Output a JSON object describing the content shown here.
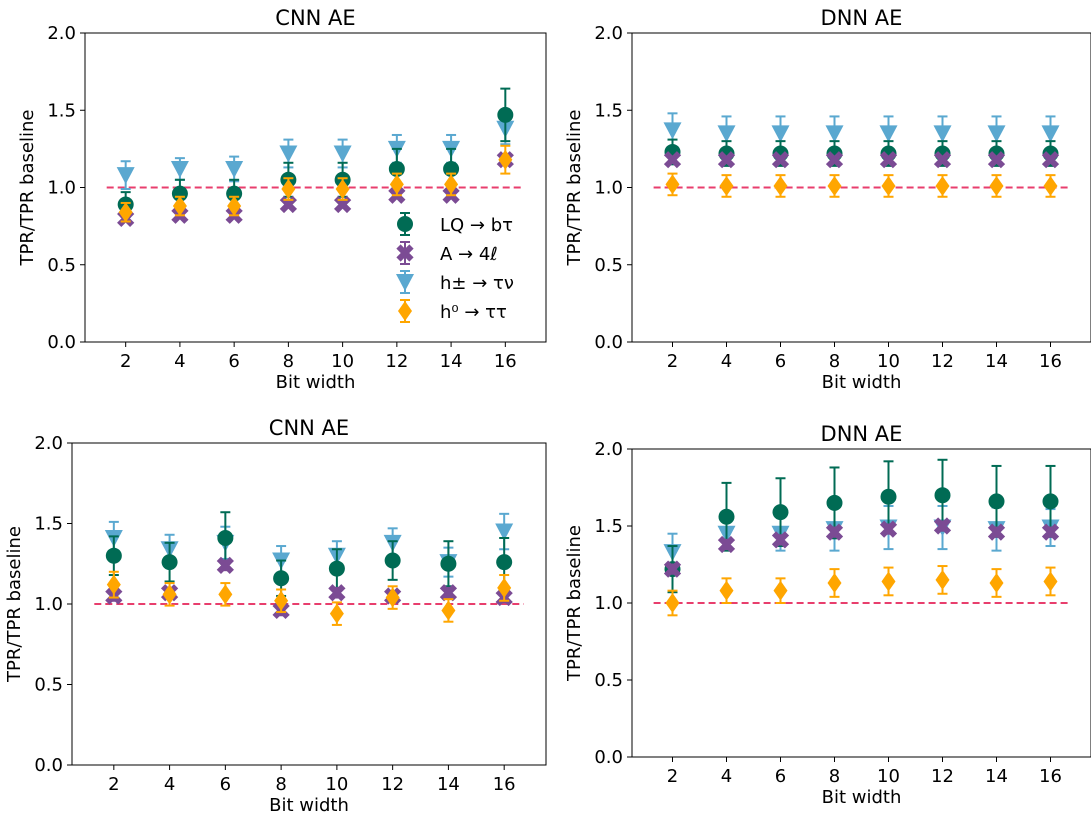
{
  "chart_data": [
    {
      "type": "scatter",
      "title": "CNN AE",
      "xlabel": "Bit width",
      "ylabel": "TPR/TPR baseline",
      "x": [
        2,
        4,
        6,
        8,
        10,
        12,
        14,
        16
      ],
      "ylim": [
        0,
        2.0
      ],
      "yticks": [
        "0.0",
        "0.5",
        "1.0",
        "1.5",
        "2.0"
      ],
      "reference_line": 1.0,
      "legend": "lower-right",
      "series": [
        {
          "name": "LQ → bτ",
          "values": [
            0.89,
            0.96,
            0.96,
            1.05,
            1.05,
            1.12,
            1.12,
            1.47
          ],
          "errors": [
            0.08,
            0.09,
            0.09,
            0.11,
            0.11,
            0.13,
            0.13,
            0.17
          ]
        },
        {
          "name": "A → 4ℓ",
          "values": [
            0.8,
            0.82,
            0.82,
            0.89,
            0.89,
            0.95,
            0.95,
            1.18
          ],
          "errors": [
            0.02,
            0.02,
            0.02,
            0.02,
            0.02,
            0.02,
            0.02,
            0.03
          ]
        },
        {
          "name": "h± → τν",
          "values": [
            1.08,
            1.12,
            1.12,
            1.22,
            1.22,
            1.25,
            1.25,
            1.38
          ],
          "errors": [
            0.09,
            0.07,
            0.08,
            0.09,
            0.09,
            0.09,
            0.09,
            0.1
          ]
        },
        {
          "name": "h⁰ → ττ",
          "values": [
            0.84,
            0.88,
            0.88,
            0.99,
            0.99,
            1.02,
            1.02,
            1.18
          ],
          "errors": [
            0.06,
            0.06,
            0.06,
            0.07,
            0.07,
            0.07,
            0.07,
            0.09
          ]
        }
      ]
    },
    {
      "type": "scatter",
      "title": "DNN AE",
      "xlabel": "Bit width",
      "ylabel": "TPR/TPR baseline",
      "x": [
        2,
        4,
        6,
        8,
        10,
        12,
        14,
        16
      ],
      "ylim": [
        0,
        2.0
      ],
      "yticks": [
        "0.0",
        "0.5",
        "1.0",
        "1.5",
        "2.0"
      ],
      "reference_line": 1.0,
      "series": [
        {
          "name": "LQ → bτ",
          "values": [
            1.23,
            1.22,
            1.22,
            1.22,
            1.22,
            1.22,
            1.22,
            1.22
          ],
          "errors": [
            0.08,
            0.08,
            0.08,
            0.08,
            0.08,
            0.08,
            0.08,
            0.08
          ]
        },
        {
          "name": "A → 4ℓ",
          "values": [
            1.18,
            1.18,
            1.18,
            1.18,
            1.18,
            1.18,
            1.18,
            1.18
          ],
          "errors": [
            0.02,
            0.02,
            0.02,
            0.02,
            0.02,
            0.02,
            0.02,
            0.02
          ]
        },
        {
          "name": "h± → τν",
          "values": [
            1.37,
            1.35,
            1.35,
            1.35,
            1.35,
            1.35,
            1.35,
            1.35
          ],
          "errors": [
            0.11,
            0.11,
            0.11,
            0.11,
            0.11,
            0.11,
            0.11,
            0.11
          ]
        },
        {
          "name": "h⁰ → ττ",
          "values": [
            1.02,
            1.01,
            1.01,
            1.01,
            1.01,
            1.01,
            1.01,
            1.01
          ],
          "errors": [
            0.07,
            0.07,
            0.07,
            0.07,
            0.07,
            0.07,
            0.07,
            0.07
          ]
        }
      ]
    },
    {
      "type": "scatter",
      "title": "CNN AE",
      "xlabel": "Bit width",
      "ylabel": "TPR/TPR baseline",
      "x": [
        2,
        4,
        6,
        8,
        10,
        12,
        14,
        16
      ],
      "ylim": [
        0,
        2.0
      ],
      "yticks": [
        "0.0",
        "0.5",
        "1.0",
        "1.5",
        "2.0"
      ],
      "reference_line": 1.0,
      "series": [
        {
          "name": "LQ → bτ",
          "values": [
            1.3,
            1.26,
            1.41,
            1.16,
            1.22,
            1.27,
            1.25,
            1.26
          ],
          "errors": [
            0.12,
            0.12,
            0.16,
            0.11,
            0.12,
            0.12,
            0.14,
            0.15
          ]
        },
        {
          "name": "A → 4ℓ",
          "values": [
            1.05,
            1.07,
            1.24,
            0.96,
            1.07,
            1.05,
            1.07,
            1.04
          ],
          "errors": [
            0.03,
            0.03,
            0.03,
            0.03,
            0.03,
            0.03,
            0.03,
            0.03
          ]
        },
        {
          "name": "h± → τν",
          "values": [
            1.41,
            1.34,
            1.38,
            1.27,
            1.3,
            1.38,
            1.26,
            1.45
          ],
          "errors": [
            0.1,
            0.09,
            0.1,
            0.09,
            0.09,
            0.09,
            0.09,
            0.11
          ]
        },
        {
          "name": "h⁰ → ττ",
          "values": [
            1.12,
            1.06,
            1.06,
            1.02,
            0.94,
            1.04,
            0.96,
            1.1
          ],
          "errors": [
            0.08,
            0.07,
            0.07,
            0.07,
            0.07,
            0.07,
            0.07,
            0.08
          ]
        }
      ]
    },
    {
      "type": "scatter",
      "title": "DNN AE",
      "xlabel": "Bit width",
      "ylabel": "TPR/TPR baseline",
      "x": [
        2,
        4,
        6,
        8,
        10,
        12,
        14,
        16
      ],
      "ylim": [
        0,
        2.0
      ],
      "yticks": [
        "0.0",
        "0.5",
        "1.0",
        "1.5",
        "2.0"
      ],
      "reference_line": 1.0,
      "series": [
        {
          "name": "LQ → bτ",
          "values": [
            1.22,
            1.56,
            1.59,
            1.65,
            1.69,
            1.7,
            1.66,
            1.66
          ],
          "errors": [
            0.15,
            0.22,
            0.22,
            0.23,
            0.23,
            0.23,
            0.23,
            0.23
          ]
        },
        {
          "name": "A → 4ℓ",
          "values": [
            1.22,
            1.38,
            1.41,
            1.46,
            1.48,
            1.5,
            1.46,
            1.46
          ],
          "errors": [
            0.03,
            0.03,
            0.03,
            0.03,
            0.03,
            0.03,
            0.03,
            0.03
          ]
        },
        {
          "name": "h± → τν",
          "values": [
            1.33,
            1.45,
            1.45,
            1.48,
            1.49,
            1.49,
            1.48,
            1.49
          ],
          "errors": [
            0.12,
            0.1,
            0.11,
            0.14,
            0.14,
            0.14,
            0.14,
            0.12
          ]
        },
        {
          "name": "h⁰ → ττ",
          "values": [
            1.0,
            1.08,
            1.08,
            1.13,
            1.14,
            1.15,
            1.13,
            1.14
          ],
          "errors": [
            0.08,
            0.08,
            0.08,
            0.09,
            0.09,
            0.09,
            0.09,
            0.09
          ]
        }
      ]
    }
  ],
  "colors": {
    "lq": "#006b54",
    "a4l": "#7b4b94",
    "hpm": "#5aa8d0",
    "h0": "#ffa600",
    "reference": "#e83e6d"
  }
}
